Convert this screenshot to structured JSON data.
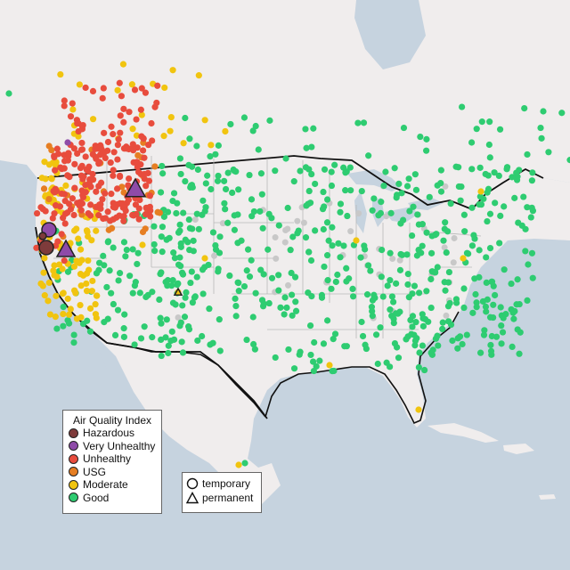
{
  "legend": {
    "title": "Air Quality Index",
    "categories": [
      {
        "label": "Hazardous",
        "color": "#7e3b3b"
      },
      {
        "label": "Very Unhealthy",
        "color": "#8e4ba8"
      },
      {
        "label": "Unhealthy",
        "color": "#e84c3d"
      },
      {
        "label": "USG",
        "color": "#e67e22"
      },
      {
        "label": "Moderate",
        "color": "#f1c40f"
      },
      {
        "label": "Good",
        "color": "#2ecc71"
      }
    ],
    "types": [
      {
        "label": "temporary",
        "shape": "circle"
      },
      {
        "label": "permanent",
        "shape": "triangle"
      }
    ]
  },
  "colors": {
    "land": "#f0eded",
    "water": "#c6d3df",
    "border": "#111111",
    "state_line": "#b8b8b8",
    "inactive": "#c8c8c8"
  }
}
